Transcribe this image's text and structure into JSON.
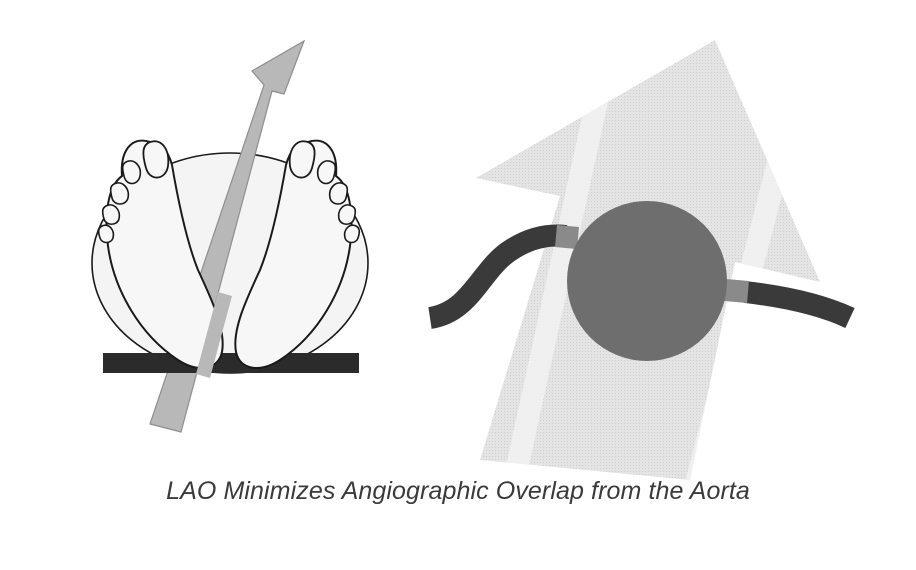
{
  "figure": {
    "caption": "LAO Minimizes Angiographic Overlap from the Aorta"
  },
  "colors": {
    "outline": "#1a1a1a",
    "body_ellipse_fill": "#f4f4f4",
    "foot_fill": "#f7f7f7",
    "table_bar": "#2b2b2b",
    "beam_arrow_fill": "#b8b8b8",
    "beam_arrow_stroke": "#8e8e8e",
    "large_arrow_fill": "#e2e2e2",
    "large_arrow_stripe": "#ececec",
    "aorta_circle": "#6e6e6e",
    "vessel": "#3a3a3a",
    "vessel_overlap": "#8a8a8a",
    "caption_text": "#3a3a3a"
  },
  "icons": {
    "left_panel": "feet-over-table-with-beam-arrow",
    "right_panel": "aorta-circle-with-vessel-and-beam-arrow"
  }
}
